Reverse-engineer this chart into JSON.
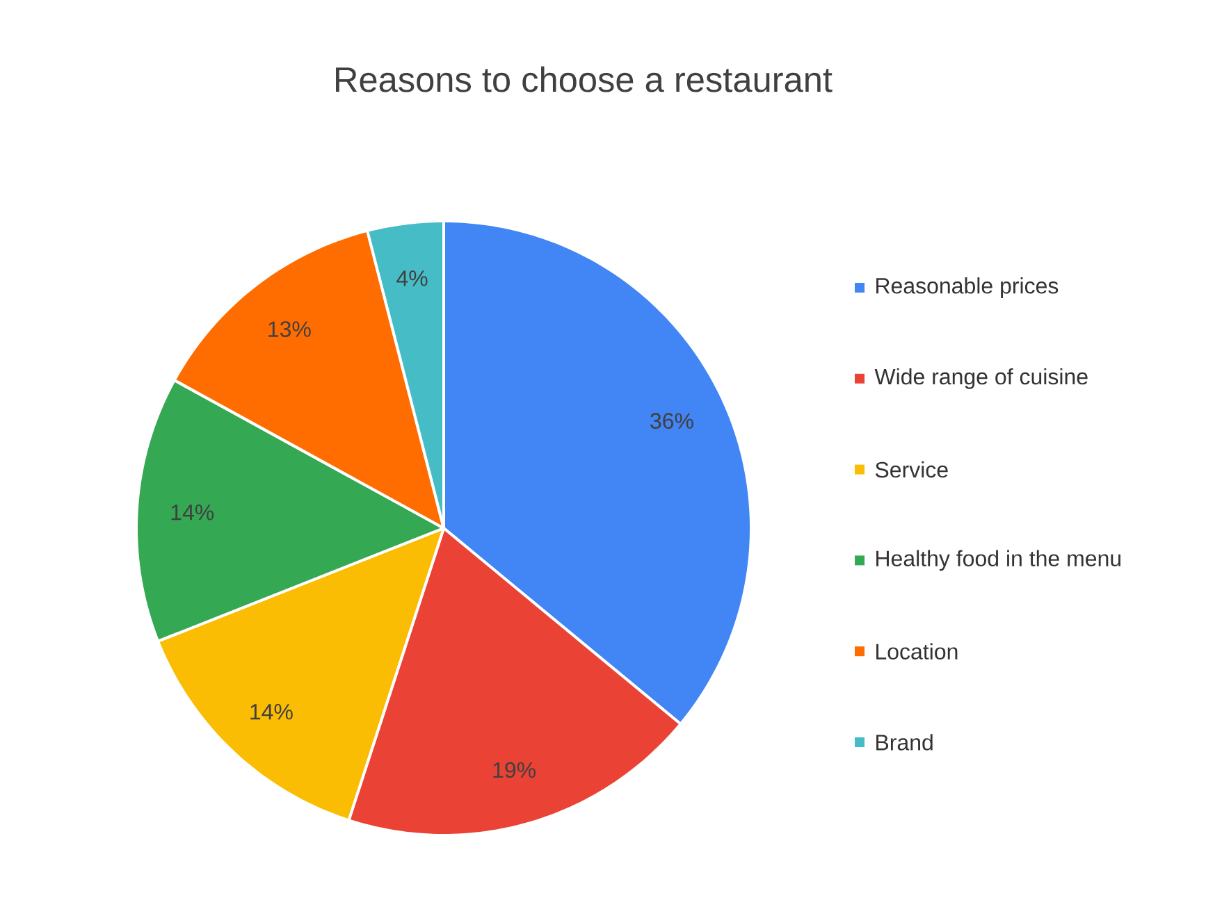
{
  "chart_data": {
    "type": "pie",
    "title": "Reasons to choose a restaurant",
    "categories": [
      "Reasonable prices",
      "Wide range of cuisine",
      "Service",
      "Healthy food in the menu",
      "Location",
      "Brand"
    ],
    "values": [
      36,
      19,
      14,
      14,
      13,
      4
    ],
    "colors": [
      "#4285f4",
      "#ea4335",
      "#fbbc04",
      "#34a853",
      "#ff6d01",
      "#46bdc6"
    ],
    "value_labels": [
      "36%",
      "19%",
      "14%",
      "14%",
      "13%",
      "4%"
    ],
    "legend": "right"
  }
}
